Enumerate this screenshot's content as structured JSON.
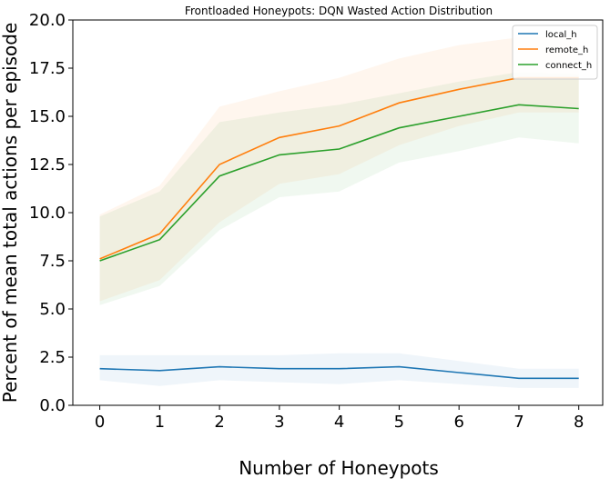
{
  "chart_data": {
    "type": "line",
    "title": "Frontloaded Honeypots: DQN Wasted Action Distribution",
    "xlabel": "Number of Honeypots",
    "ylabel": "Percent of mean total actions per episode",
    "x": [
      0,
      1,
      2,
      3,
      4,
      5,
      6,
      7,
      8
    ],
    "xlim": [
      -0.45,
      8.4
    ],
    "ylim": [
      0,
      20
    ],
    "xticks": [
      "0",
      "1",
      "2",
      "3",
      "4",
      "5",
      "6",
      "7",
      "8"
    ],
    "yticks": [
      "0.0",
      "2.5",
      "5.0",
      "7.5",
      "10.0",
      "12.5",
      "15.0",
      "17.5",
      "20.0"
    ],
    "legend_position": "top-right",
    "grid": false,
    "series": [
      {
        "name": "local_h",
        "color": "#1f77b4",
        "values": [
          1.9,
          1.8,
          2.0,
          1.9,
          1.9,
          2.0,
          1.7,
          1.4,
          1.4
        ],
        "lower": [
          1.3,
          1.0,
          1.3,
          1.2,
          1.1,
          1.3,
          1.1,
          0.9,
          0.9
        ],
        "upper": [
          2.6,
          2.6,
          2.6,
          2.6,
          2.7,
          2.7,
          2.3,
          1.9,
          1.9
        ]
      },
      {
        "name": "remote_h",
        "color": "#ff7f0e",
        "values": [
          7.6,
          8.9,
          12.5,
          13.9,
          14.5,
          15.7,
          16.4,
          17.0,
          17.0
        ],
        "lower": [
          5.4,
          6.5,
          9.5,
          11.5,
          12.0,
          13.5,
          14.5,
          15.2,
          15.2
        ],
        "upper": [
          9.9,
          11.4,
          15.5,
          16.3,
          17.0,
          18.0,
          18.7,
          19.1,
          19.1
        ]
      },
      {
        "name": "connect_h",
        "color": "#2ca02c",
        "values": [
          7.5,
          8.6,
          11.9,
          13.0,
          13.3,
          14.4,
          15.0,
          15.6,
          15.4
        ],
        "lower": [
          5.2,
          6.2,
          9.1,
          10.8,
          11.1,
          12.6,
          13.2,
          13.9,
          13.6
        ],
        "upper": [
          9.8,
          11.1,
          14.7,
          15.2,
          15.6,
          16.2,
          16.8,
          17.3,
          17.2
        ]
      }
    ]
  }
}
